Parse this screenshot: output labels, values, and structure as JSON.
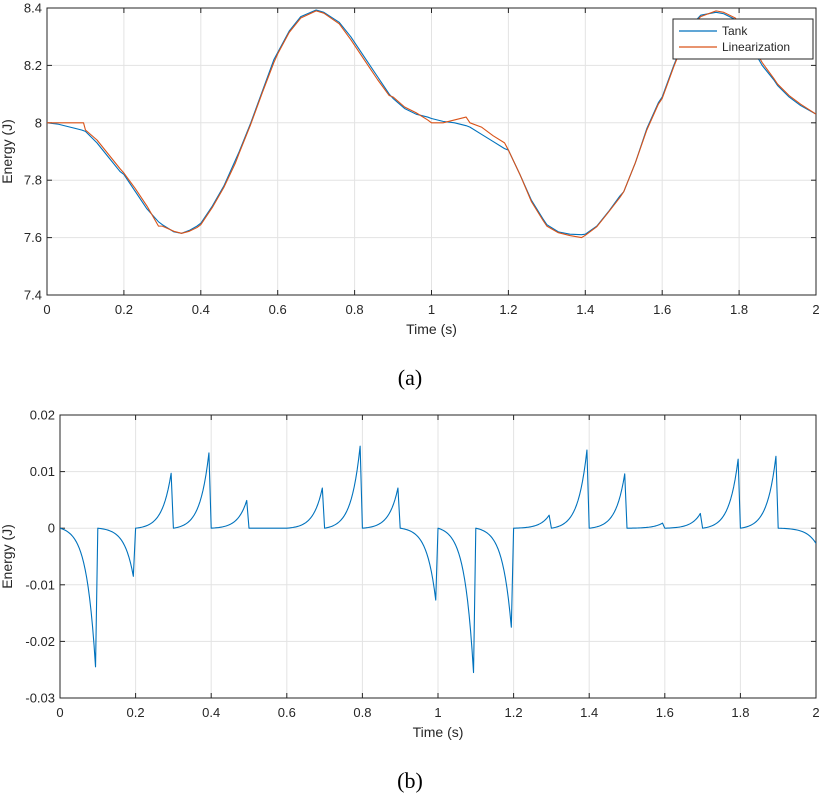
{
  "chart_data": [
    {
      "type": "line",
      "caption": "(a)",
      "xlabel": "Time (s)",
      "ylabel": "Energy (J)",
      "xlim": [
        0,
        2
      ],
      "ylim": [
        7.4,
        8.4
      ],
      "xticks": [
        0,
        0.2,
        0.4,
        0.6,
        0.8,
        1,
        1.2,
        1.4,
        1.6,
        1.8,
        2
      ],
      "xtick_labels": [
        "0",
        "0.2",
        "0.4",
        "0.6",
        "0.8",
        "1",
        "1.2",
        "1.4",
        "1.6",
        "1.8",
        "2"
      ],
      "yticks": [
        7.4,
        7.6,
        7.8,
        8,
        8.2,
        8.4
      ],
      "ytick_labels": [
        "7.4",
        "7.6",
        "7.8",
        "8",
        "8.2",
        "8.4"
      ],
      "grid": true,
      "legend_position": "top-right",
      "series": [
        {
          "name": "Tank",
          "color": "#0072BD",
          "x": [
            0,
            0.03,
            0.06,
            0.09,
            0.1,
            0.13,
            0.16,
            0.19,
            0.2,
            0.23,
            0.26,
            0.29,
            0.3,
            0.33,
            0.35,
            0.37,
            0.39,
            0.4,
            0.43,
            0.46,
            0.49,
            0.5,
            0.53,
            0.56,
            0.59,
            0.6,
            0.63,
            0.66,
            0.7,
            0.72,
            0.76,
            0.79,
            0.8,
            0.83,
            0.86,
            0.89,
            0.9,
            0.93,
            0.96,
            0.99,
            1.0,
            1.03,
            1.06,
            1.09,
            1.1,
            1.13,
            1.16,
            1.19,
            1.2,
            1.23,
            1.26,
            1.29,
            1.3,
            1.33,
            1.36,
            1.39,
            1.4,
            1.43,
            1.46,
            1.49,
            1.5,
            1.53,
            1.56,
            1.59,
            1.6,
            1.63,
            1.66,
            1.69,
            1.7,
            1.74,
            1.76,
            1.79,
            1.8,
            1.83,
            1.86,
            1.89,
            1.9,
            1.93,
            1.96,
            2.0
          ],
          "y": [
            8.0,
            7.995,
            7.985,
            7.975,
            7.97,
            7.93,
            7.88,
            7.83,
            7.82,
            7.76,
            7.7,
            7.655,
            7.645,
            7.62,
            7.615,
            7.625,
            7.64,
            7.65,
            7.71,
            7.78,
            7.87,
            7.9,
            8.0,
            8.11,
            8.22,
            8.245,
            8.32,
            8.37,
            8.393,
            8.385,
            8.35,
            8.3,
            8.28,
            8.22,
            8.16,
            8.1,
            8.085,
            8.05,
            8.03,
            8.02,
            8.015,
            8.005,
            8.0,
            7.99,
            7.985,
            7.96,
            7.935,
            7.91,
            7.905,
            7.82,
            7.73,
            7.665,
            7.645,
            7.62,
            7.612,
            7.61,
            7.612,
            7.64,
            7.69,
            7.745,
            7.76,
            7.86,
            7.98,
            8.07,
            8.09,
            8.2,
            8.3,
            8.36,
            8.375,
            8.385,
            8.38,
            8.36,
            8.34,
            8.27,
            8.2,
            8.15,
            8.13,
            8.09,
            8.06,
            8.03
          ]
        },
        {
          "name": "Linearization",
          "color": "#D95319",
          "x": [
            0,
            0.03,
            0.06,
            0.09,
            0.095,
            0.1,
            0.13,
            0.16,
            0.19,
            0.2,
            0.23,
            0.26,
            0.29,
            0.3,
            0.33,
            0.35,
            0.37,
            0.39,
            0.4,
            0.43,
            0.46,
            0.49,
            0.5,
            0.53,
            0.56,
            0.59,
            0.6,
            0.63,
            0.66,
            0.7,
            0.72,
            0.76,
            0.79,
            0.8,
            0.83,
            0.86,
            0.89,
            0.9,
            0.93,
            0.96,
            0.99,
            1.0,
            1.03,
            1.06,
            1.09,
            1.1,
            1.13,
            1.16,
            1.19,
            1.2,
            1.23,
            1.26,
            1.29,
            1.3,
            1.33,
            1.36,
            1.39,
            1.4,
            1.43,
            1.46,
            1.49,
            1.5,
            1.53,
            1.56,
            1.59,
            1.6,
            1.63,
            1.66,
            1.69,
            1.7,
            1.74,
            1.76,
            1.79,
            1.8,
            1.83,
            1.86,
            1.89,
            1.9,
            1.93,
            1.96,
            2.0
          ],
          "y": [
            8.0,
            8.0,
            8.0,
            8.0,
            8.0,
            7.975,
            7.94,
            7.89,
            7.84,
            7.825,
            7.77,
            7.71,
            7.64,
            7.64,
            7.622,
            7.615,
            7.622,
            7.635,
            7.645,
            7.705,
            7.775,
            7.86,
            7.895,
            7.995,
            8.105,
            8.21,
            8.24,
            8.315,
            8.365,
            8.39,
            8.382,
            8.345,
            8.29,
            8.27,
            8.21,
            8.15,
            8.095,
            8.09,
            8.055,
            8.035,
            8.01,
            8.0,
            8.0,
            8.01,
            8.02,
            8.0,
            7.985,
            7.955,
            7.93,
            7.905,
            7.82,
            7.725,
            7.66,
            7.64,
            7.617,
            7.607,
            7.6,
            7.608,
            7.638,
            7.688,
            7.74,
            7.76,
            7.86,
            7.975,
            8.065,
            8.085,
            8.195,
            8.295,
            8.355,
            8.37,
            8.39,
            8.385,
            8.365,
            8.35,
            8.28,
            8.21,
            8.155,
            8.135,
            8.095,
            8.065,
            8.03
          ]
        }
      ]
    },
    {
      "type": "line",
      "caption": "(b)",
      "xlabel": "Time (s)",
      "ylabel": "Energy (J)",
      "xlim": [
        0,
        2
      ],
      "ylim": [
        -0.03,
        0.02
      ],
      "xticks": [
        0,
        0.2,
        0.4,
        0.6,
        0.8,
        1,
        1.2,
        1.4,
        1.6,
        1.8,
        2
      ],
      "xtick_labels": [
        "0",
        "0.2",
        "0.4",
        "0.6",
        "0.8",
        "1",
        "1.2",
        "1.4",
        "1.6",
        "1.8",
        "2"
      ],
      "yticks": [
        -0.03,
        -0.02,
        -0.01,
        0,
        0.01,
        0.02
      ],
      "ytick_labels": [
        "-0.03",
        "-0.02",
        "-0.01",
        "0",
        "0.01",
        "0.02"
      ],
      "grid": true,
      "series": [
        {
          "color": "#0072BD",
          "segments": [
            {
              "x0": 0.0,
              "y0": 0.0,
              "x1": 0.094,
              "y1": -0.0245
            },
            {
              "x0": 0.1,
              "y0": 0.0,
              "x1": 0.194,
              "y1": -0.0085
            },
            {
              "x0": 0.2,
              "y0": 0.0,
              "x1": 0.294,
              "y1": 0.0097
            },
            {
              "x0": 0.3,
              "y0": 0.0,
              "x1": 0.394,
              "y1": 0.0133
            },
            {
              "x0": 0.4,
              "y0": 0.0,
              "x1": 0.494,
              "y1": 0.0049
            },
            {
              "x0": 0.5,
              "y0": 0.0,
              "x1": 0.594,
              "y1": 0.0
            },
            {
              "x0": 0.6,
              "y0": 0.0,
              "x1": 0.694,
              "y1": 0.0071
            },
            {
              "x0": 0.7,
              "y0": 0.0,
              "x1": 0.794,
              "y1": 0.0145
            },
            {
              "x0": 0.8,
              "y0": 0.0,
              "x1": 0.894,
              "y1": 0.0071
            },
            {
              "x0": 0.9,
              "y0": 0.0,
              "x1": 0.994,
              "y1": -0.0127
            },
            {
              "x0": 1.0,
              "y0": 0.0,
              "x1": 1.094,
              "y1": -0.0255
            },
            {
              "x0": 1.1,
              "y0": 0.0,
              "x1": 1.194,
              "y1": -0.0175
            },
            {
              "x0": 1.2,
              "y0": 0.0,
              "x1": 1.294,
              "y1": 0.0023
            },
            {
              "x0": 1.3,
              "y0": 0.0,
              "x1": 1.394,
              "y1": 0.0138
            },
            {
              "x0": 1.4,
              "y0": 0.0,
              "x1": 1.494,
              "y1": 0.0096
            },
            {
              "x0": 1.5,
              "y0": 0.0,
              "x1": 1.594,
              "y1": 0.0009
            },
            {
              "x0": 1.6,
              "y0": 0.0,
              "x1": 1.694,
              "y1": 0.0026
            },
            {
              "x0": 1.7,
              "y0": 0.0,
              "x1": 1.794,
              "y1": 0.0122
            },
            {
              "x0": 1.8,
              "y0": 0.0,
              "x1": 1.894,
              "y1": 0.0127
            },
            {
              "x0": 1.9,
              "y0": 0.0,
              "x1": 2.0,
              "y1": -0.0027
            }
          ]
        }
      ]
    }
  ]
}
